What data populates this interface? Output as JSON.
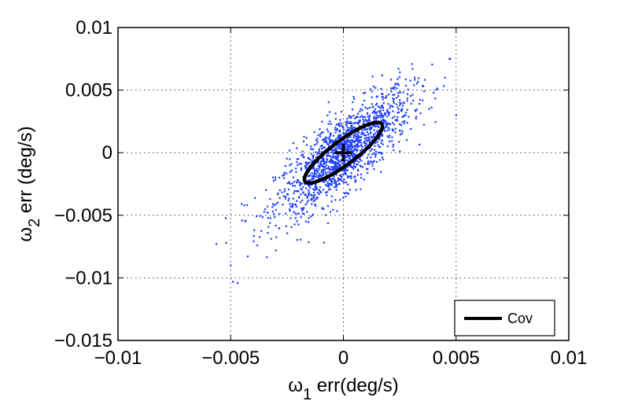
{
  "chart_data": {
    "type": "scatter",
    "xlabel": {
      "symbol": "ω",
      "sub": "1",
      "rest": " err(deg/s)"
    },
    "ylabel": {
      "symbol": "ω",
      "sub": "2",
      "rest": " err (deg/s)"
    },
    "xlim": [
      -0.01,
      0.01
    ],
    "ylim": [
      -0.015,
      0.01
    ],
    "xticks": [
      -0.01,
      -0.005,
      0,
      0.005,
      0.01
    ],
    "xtick_labels": [
      "−0.01",
      "−0.005",
      "0",
      "0.005",
      "0.01"
    ],
    "yticks": [
      -0.015,
      -0.01,
      -0.005,
      0,
      0.005,
      0.01
    ],
    "ytick_labels": [
      "−0.015",
      "−0.01",
      "−0.005",
      "0",
      "0.005",
      "0.01"
    ],
    "grid": true,
    "grid_style": "dotted",
    "legend": {
      "position": "bottom-right",
      "entries": [
        "Cov"
      ]
    },
    "point_color": "#1f3fff",
    "ellipse_color": "#000000",
    "series": [
      {
        "kind": "scatter",
        "note": "approx. 1500 error samples; correlated Gaussian",
        "mean": [
          0.0,
          0.0
        ],
        "std": [
          0.0015,
          0.0025
        ],
        "correlation": 0.8,
        "n": 1500,
        "outliers": [
          [
            -0.0052,
            -0.0072
          ],
          [
            -0.005,
            -0.009
          ],
          [
            -0.0049,
            -0.0103
          ],
          [
            -0.0047,
            -0.0104
          ],
          [
            -0.003,
            -0.0078
          ],
          [
            0.0045,
            0.006
          ],
          [
            0.0047,
            0.0075
          ],
          [
            0.005,
            0.003
          ],
          [
            0.004,
            0.0048
          ],
          [
            -0.0044,
            -0.0042
          ],
          [
            0.0038,
            0.0035
          ]
        ]
      },
      {
        "kind": "ellipse",
        "name": "Cov",
        "center": [
          0.0,
          0.0
        ],
        "endpoints": [
          [
            -0.0017,
            -0.0023
          ],
          [
            0.0017,
            0.0023
          ]
        ],
        "half_minor": 0.0008
      }
    ],
    "mean_marker": {
      "x": 0.0,
      "y": 0.0,
      "symbol": "+"
    }
  }
}
